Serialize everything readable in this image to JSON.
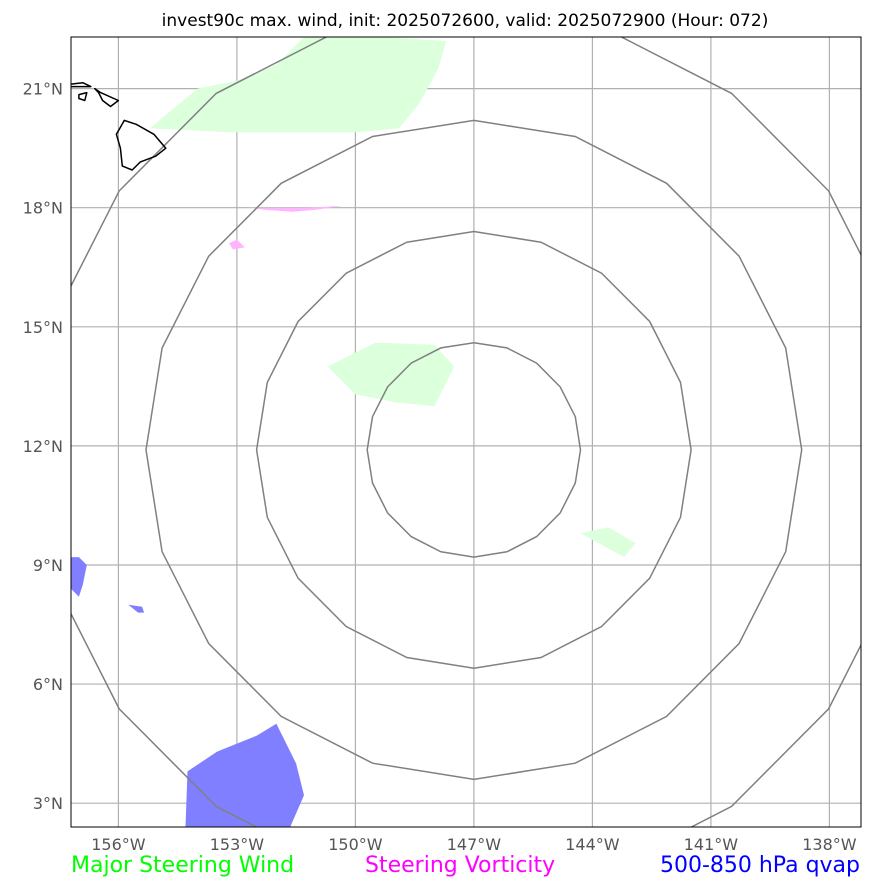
{
  "title": "invest90c max. wind, init: 2025072600, valid: 2025072900 (Hour: 072)",
  "axes": {
    "lat_ticks": [
      {
        "value": 3,
        "label": "3°N"
      },
      {
        "value": 6,
        "label": "6°N"
      },
      {
        "value": 9,
        "label": "9°N"
      },
      {
        "value": 12,
        "label": "12°N"
      },
      {
        "value": 15,
        "label": "15°N"
      },
      {
        "value": 18,
        "label": "18°N"
      },
      {
        "value": 21,
        "label": "21°N"
      }
    ],
    "lon_ticks": [
      {
        "value": -156,
        "label": "156°W"
      },
      {
        "value": -153,
        "label": "153°W"
      },
      {
        "value": -150,
        "label": "150°W"
      },
      {
        "value": -147,
        "label": "147°W"
      },
      {
        "value": -144,
        "label": "144°W"
      },
      {
        "value": -141,
        "label": "141°W"
      },
      {
        "value": -138,
        "label": "138°W"
      }
    ],
    "lon_range": [
      -157.2,
      -137.2
    ],
    "lat_range": [
      2.4,
      22.3
    ]
  },
  "colors": {
    "wind": "#00ff00",
    "wind_fill": "#dcffdc",
    "vorticity": "#ff00ff",
    "vorticity_fill": "#ffb4ff",
    "qvap": "#0000ff",
    "qvap_fill": "#7f7fff",
    "rings": "#808080",
    "grid": "#b0b0b0"
  },
  "legend": {
    "wind": "Major Steering Wind",
    "vorticity": "Steering Vorticity",
    "qvap": "500-850 hPa qvap"
  },
  "map": {
    "center": {
      "lon": -147,
      "lat": 11.9
    },
    "range_rings_deg": [
      2.7,
      5.5,
      8.3,
      11.1
    ],
    "wind_areas": [
      [
        [
          -155.2,
          20
        ],
        [
          -154.0,
          21.0
        ],
        [
          -153.0,
          21.2
        ],
        [
          -152.0,
          21.6
        ],
        [
          -151.3,
          22.3
        ],
        [
          -149.3,
          22.3
        ],
        [
          -147.7,
          22.2
        ],
        [
          -147.9,
          21.5
        ],
        [
          -148.4,
          20.6
        ],
        [
          -148.9,
          20.0
        ],
        [
          -150.0,
          19.9
        ],
        [
          -151.5,
          19.9
        ],
        [
          -153.2,
          19.9
        ]
      ],
      [
        [
          -150.7,
          14.0
        ],
        [
          -149.5,
          14.6
        ],
        [
          -148.0,
          14.55
        ],
        [
          -147.5,
          14.0
        ],
        [
          -147.8,
          13.4
        ],
        [
          -148.0,
          13.0
        ],
        [
          -149.0,
          13.1
        ],
        [
          -150.0,
          13.3
        ]
      ],
      [
        [
          -144.3,
          9.8
        ],
        [
          -143.6,
          9.95
        ],
        [
          -142.9,
          9.55
        ],
        [
          -143.2,
          9.2
        ]
      ]
    ],
    "vorticity_areas": [
      [
        [
          -152.7,
          18.0
        ],
        [
          -151.2,
          18.0
        ],
        [
          -150.3,
          18.05
        ],
        [
          -151.0,
          17.95
        ],
        [
          -151.6,
          17.9
        ],
        [
          -152.3,
          17.95
        ]
      ],
      [
        [
          -153.2,
          17.1
        ],
        [
          -153.0,
          17.2
        ],
        [
          -152.8,
          17.0
        ],
        [
          -153.1,
          16.95
        ]
      ]
    ],
    "qvap_areas": [
      [
        [
          -154.3,
          2.4
        ],
        [
          -154.25,
          3.8
        ],
        [
          -153.5,
          4.3
        ],
        [
          -152.5,
          4.7
        ],
        [
          -152.0,
          5.0
        ],
        [
          -151.5,
          4.0
        ],
        [
          -151.3,
          3.2
        ],
        [
          -151.65,
          2.4
        ]
      ],
      [
        [
          -157.2,
          9.2
        ],
        [
          -157.0,
          9.2
        ],
        [
          -156.8,
          9.0
        ],
        [
          -156.9,
          8.5
        ],
        [
          -157.0,
          8.2
        ],
        [
          -157.2,
          8.4
        ]
      ],
      [
        [
          -155.75,
          8.0
        ],
        [
          -155.4,
          7.95
        ],
        [
          -155.35,
          7.8
        ],
        [
          -155.5,
          7.8
        ]
      ]
    ],
    "coastlines": [
      [
        [
          -155.85,
          20.2
        ],
        [
          -155.55,
          20.1
        ],
        [
          -155.1,
          19.85
        ],
        [
          -154.8,
          19.5
        ],
        [
          -155.05,
          19.3
        ],
        [
          -155.45,
          19.15
        ],
        [
          -155.65,
          18.95
        ],
        [
          -155.9,
          19.05
        ],
        [
          -155.95,
          19.5
        ],
        [
          -156.05,
          19.85
        ],
        [
          -155.85,
          20.2
        ]
      ],
      [
        [
          -156.6,
          21.0
        ],
        [
          -156.45,
          20.9
        ],
        [
          -156.0,
          20.7
        ],
        [
          -156.2,
          20.55
        ],
        [
          -156.4,
          20.7
        ],
        [
          -156.5,
          20.9
        ]
      ],
      [
        [
          -157.3,
          21.1
        ],
        [
          -156.9,
          21.15
        ],
        [
          -156.7,
          21.05
        ],
        [
          -157.2,
          21.05
        ]
      ],
      [
        [
          -157.0,
          20.85
        ],
        [
          -156.8,
          20.9
        ],
        [
          -156.85,
          20.7
        ],
        [
          -157.0,
          20.75
        ]
      ]
    ]
  }
}
